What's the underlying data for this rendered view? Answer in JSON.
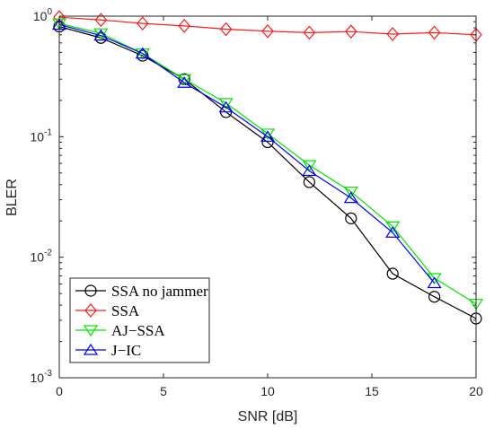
{
  "chart_data": {
    "type": "line",
    "xlabel": "SNR [dB]",
    "ylabel": "BLER",
    "xlim": [
      0,
      20
    ],
    "ylim": [
      0.001,
      1
    ],
    "yscale": "log",
    "grid": false,
    "legend_position": "bottom-left",
    "x_ticks": [
      0,
      5,
      10,
      15,
      20
    ],
    "x_tick_labels": [
      "0",
      "5",
      "10",
      "15",
      "20"
    ],
    "y_ticks": [
      {
        "value": 1,
        "base": "10",
        "exp": "0"
      },
      {
        "value": 0.1,
        "base": "10",
        "exp": "-1"
      },
      {
        "value": 0.01,
        "base": "10",
        "exp": "-2"
      },
      {
        "value": 0.001,
        "base": "10",
        "exp": "-3"
      }
    ],
    "series": [
      {
        "name": "SSA no jammer",
        "color": "#000000",
        "marker": "circle",
        "x": [
          0,
          2,
          4,
          6,
          8,
          10,
          12,
          14,
          16,
          18,
          20
        ],
        "y": [
          0.82,
          0.66,
          0.47,
          0.3,
          0.16,
          0.09,
          0.042,
          0.021,
          0.0073,
          0.0047,
          0.0031
        ]
      },
      {
        "name": "SSA",
        "color": "#ff1a1a",
        "marker": "diamond",
        "x": [
          0,
          2,
          4,
          6,
          8,
          10,
          12,
          14,
          16,
          18,
          20
        ],
        "y": [
          0.98,
          0.93,
          0.87,
          0.83,
          0.78,
          0.75,
          0.73,
          0.745,
          0.71,
          0.73,
          0.7
        ]
      },
      {
        "name": "AJ−SSA",
        "color": "#00e600",
        "marker": "triangle-down",
        "x": [
          0,
          2,
          4,
          6,
          8,
          10,
          12,
          14,
          16,
          18,
          20
        ],
        "y": [
          0.87,
          0.72,
          0.49,
          0.3,
          0.19,
          0.106,
          0.058,
          0.035,
          0.018,
          0.0067,
          0.0041
        ]
      },
      {
        "name": "J−IC",
        "color": "#0000ff",
        "marker": "triangle-up",
        "x": [
          0,
          2,
          4,
          6,
          8,
          10,
          12,
          14,
          16,
          18,
          20
        ],
        "y": [
          0.85,
          0.69,
          0.49,
          0.28,
          0.175,
          0.1,
          0.052,
          0.031,
          0.016,
          0.0061,
          null
        ]
      }
    ]
  }
}
